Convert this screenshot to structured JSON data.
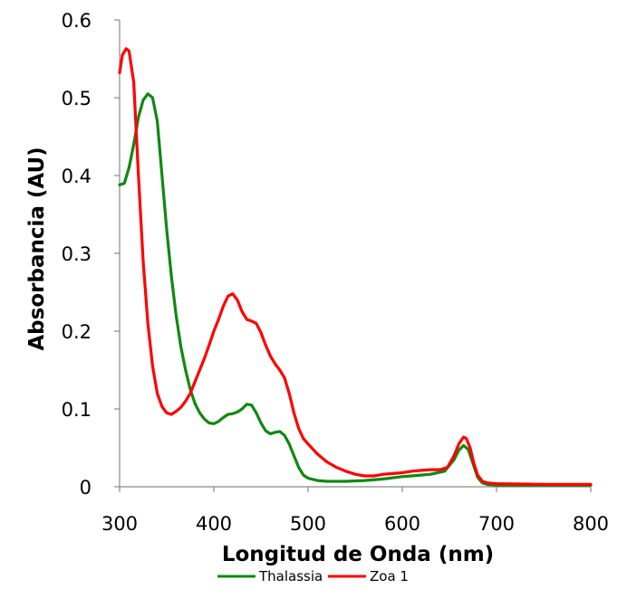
{
  "chart_data": {
    "type": "line",
    "title": "",
    "xlabel": "Longitud de Onda (nm)",
    "ylabel": "Absorbancia (AU)",
    "xlim": [
      300,
      800
    ],
    "ylim": [
      0,
      0.6
    ],
    "x_ticks": [
      "300",
      "400",
      "500",
      "600",
      "700",
      "800"
    ],
    "y_ticks": [
      "0",
      "0.1",
      "0.2",
      "0.3",
      "0.4",
      "0.5",
      "0.6"
    ],
    "grid": false,
    "legend_position": "bottom",
    "series": [
      {
        "name": "Thalassia",
        "color": "#118811",
        "points": [
          [
            300,
            0.388
          ],
          [
            305,
            0.39
          ],
          [
            310,
            0.41
          ],
          [
            315,
            0.44
          ],
          [
            320,
            0.475
          ],
          [
            325,
            0.497
          ],
          [
            330,
            0.505
          ],
          [
            335,
            0.5
          ],
          [
            340,
            0.47
          ],
          [
            345,
            0.4
          ],
          [
            350,
            0.33
          ],
          [
            355,
            0.27
          ],
          [
            360,
            0.22
          ],
          [
            365,
            0.18
          ],
          [
            370,
            0.15
          ],
          [
            375,
            0.125
          ],
          [
            380,
            0.107
          ],
          [
            385,
            0.095
          ],
          [
            390,
            0.087
          ],
          [
            395,
            0.082
          ],
          [
            400,
            0.081
          ],
          [
            405,
            0.084
          ],
          [
            410,
            0.089
          ],
          [
            415,
            0.093
          ],
          [
            420,
            0.094
          ],
          [
            425,
            0.096
          ],
          [
            430,
            0.1
          ],
          [
            435,
            0.106
          ],
          [
            440,
            0.105
          ],
          [
            445,
            0.095
          ],
          [
            450,
            0.082
          ],
          [
            455,
            0.072
          ],
          [
            460,
            0.068
          ],
          [
            465,
            0.07
          ],
          [
            470,
            0.071
          ],
          [
            475,
            0.066
          ],
          [
            480,
            0.055
          ],
          [
            485,
            0.04
          ],
          [
            490,
            0.025
          ],
          [
            495,
            0.015
          ],
          [
            500,
            0.011
          ],
          [
            510,
            0.008
          ],
          [
            520,
            0.007
          ],
          [
            540,
            0.007
          ],
          [
            560,
            0.008
          ],
          [
            580,
            0.01
          ],
          [
            600,
            0.013
          ],
          [
            610,
            0.014
          ],
          [
            630,
            0.016
          ],
          [
            645,
            0.02
          ],
          [
            655,
            0.035
          ],
          [
            660,
            0.047
          ],
          [
            665,
            0.053
          ],
          [
            670,
            0.048
          ],
          [
            675,
            0.03
          ],
          [
            680,
            0.012
          ],
          [
            685,
            0.005
          ],
          [
            690,
            0.003
          ],
          [
            700,
            0.002
          ],
          [
            750,
            0.002
          ],
          [
            800,
            0.002
          ]
        ]
      },
      {
        "name": "Zoa 1",
        "color": "#ff0000",
        "points": [
          [
            300,
            0.532
          ],
          [
            303,
            0.555
          ],
          [
            307,
            0.563
          ],
          [
            310,
            0.56
          ],
          [
            315,
            0.52
          ],
          [
            320,
            0.4
          ],
          [
            325,
            0.29
          ],
          [
            330,
            0.21
          ],
          [
            335,
            0.155
          ],
          [
            340,
            0.12
          ],
          [
            345,
            0.103
          ],
          [
            350,
            0.095
          ],
          [
            355,
            0.093
          ],
          [
            360,
            0.097
          ],
          [
            365,
            0.102
          ],
          [
            370,
            0.11
          ],
          [
            375,
            0.12
          ],
          [
            380,
            0.135
          ],
          [
            385,
            0.15
          ],
          [
            390,
            0.165
          ],
          [
            395,
            0.182
          ],
          [
            400,
            0.2
          ],
          [
            405,
            0.215
          ],
          [
            410,
            0.232
          ],
          [
            415,
            0.245
          ],
          [
            420,
            0.248
          ],
          [
            425,
            0.24
          ],
          [
            430,
            0.225
          ],
          [
            435,
            0.215
          ],
          [
            440,
            0.213
          ],
          [
            445,
            0.21
          ],
          [
            450,
            0.198
          ],
          [
            455,
            0.182
          ],
          [
            460,
            0.168
          ],
          [
            465,
            0.158
          ],
          [
            470,
            0.15
          ],
          [
            475,
            0.14
          ],
          [
            480,
            0.12
          ],
          [
            485,
            0.095
          ],
          [
            490,
            0.075
          ],
          [
            495,
            0.062
          ],
          [
            500,
            0.055
          ],
          [
            510,
            0.042
          ],
          [
            520,
            0.032
          ],
          [
            530,
            0.025
          ],
          [
            540,
            0.02
          ],
          [
            550,
            0.016
          ],
          [
            560,
            0.014
          ],
          [
            570,
            0.014
          ],
          [
            580,
            0.016
          ],
          [
            590,
            0.017
          ],
          [
            600,
            0.018
          ],
          [
            610,
            0.02
          ],
          [
            620,
            0.021
          ],
          [
            630,
            0.022
          ],
          [
            640,
            0.022
          ],
          [
            648,
            0.025
          ],
          [
            655,
            0.04
          ],
          [
            660,
            0.055
          ],
          [
            665,
            0.064
          ],
          [
            668,
            0.062
          ],
          [
            672,
            0.05
          ],
          [
            676,
            0.03
          ],
          [
            680,
            0.015
          ],
          [
            685,
            0.007
          ],
          [
            690,
            0.005
          ],
          [
            700,
            0.004
          ],
          [
            750,
            0.003
          ],
          [
            800,
            0.003
          ]
        ]
      }
    ]
  }
}
